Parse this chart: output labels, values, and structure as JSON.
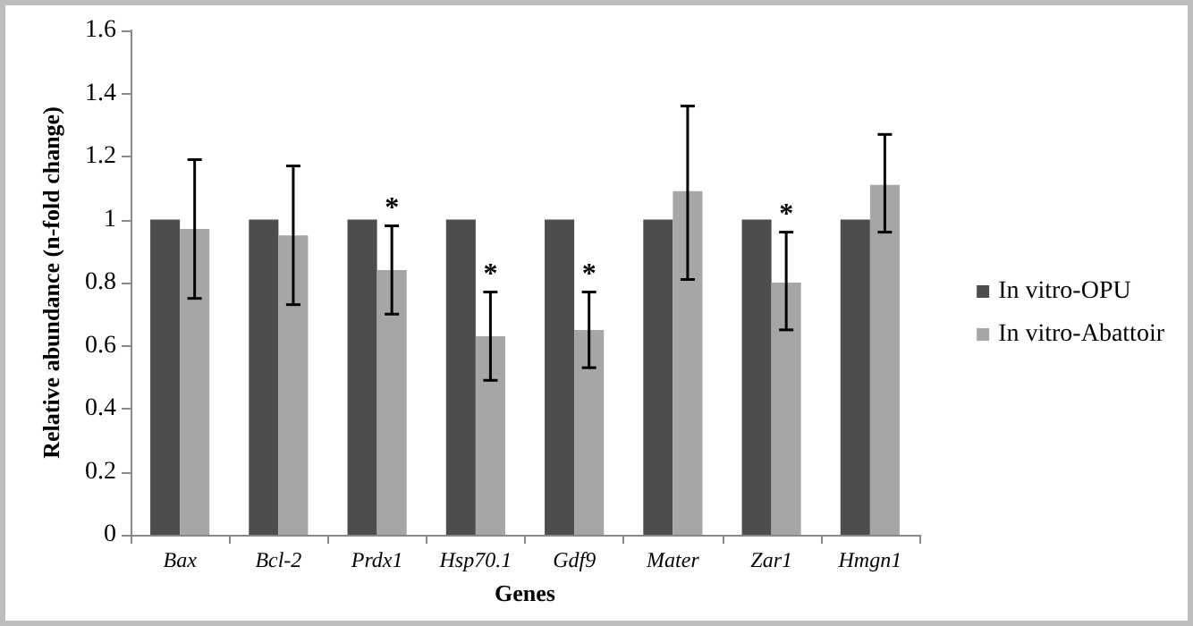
{
  "chart_data": {
    "type": "bar",
    "xlabel": "Genes",
    "ylabel": "Relative abundance (n-fold change)",
    "categories": [
      "Bax",
      "Bcl-2",
      "Prdx1",
      "Hsp70.1",
      "Gdf9",
      "Mater",
      "Zar1",
      "Hmgn1"
    ],
    "series": [
      {
        "name": "In vitro-OPU",
        "color": "#4d4d4d",
        "values": [
          1,
          1,
          1,
          1,
          1,
          1,
          1,
          1
        ]
      },
      {
        "name": "In vitro-Abattoir",
        "color": "#a6a6a6",
        "values": [
          0.97,
          0.95,
          0.84,
          0.63,
          0.65,
          1.09,
          0.8,
          1.11
        ],
        "errors": [
          [
            0.75,
            1.19
          ],
          [
            0.73,
            1.17
          ],
          [
            0.7,
            0.98
          ],
          [
            0.49,
            0.77
          ],
          [
            0.53,
            0.77
          ],
          [
            0.81,
            1.36
          ],
          [
            0.65,
            0.96
          ],
          [
            0.96,
            1.27
          ]
        ]
      }
    ],
    "annotations": [
      {
        "text": "*",
        "x": "Prdx1",
        "y": 0.98
      },
      {
        "text": "*",
        "x": "Hsp70.1",
        "y": 0.77
      },
      {
        "text": "*",
        "x": "Gdf9",
        "y": 0.77
      },
      {
        "text": "*",
        "x": "Zar1",
        "y": 0.96
      }
    ],
    "ylim": [
      0,
      1.6
    ],
    "yticks": [
      0,
      0.2,
      0.4,
      0.6,
      0.8,
      1,
      1.2,
      1.4,
      1.6
    ],
    "grid": false,
    "legend": "right"
  }
}
